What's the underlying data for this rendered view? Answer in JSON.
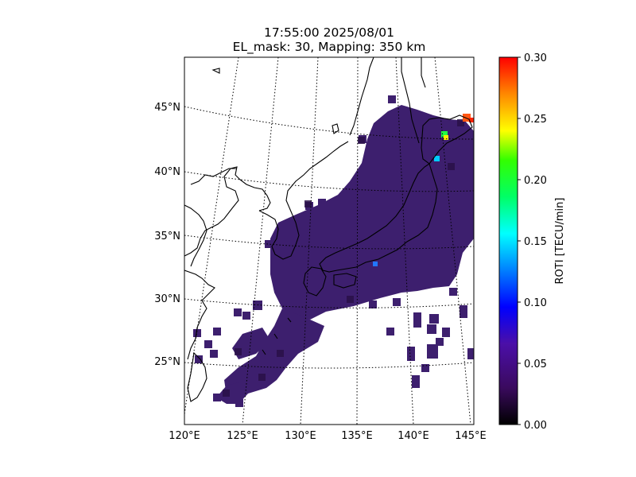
{
  "title": {
    "line1": "17:55:00 2025/08/01",
    "line2": "EL_mask: 30, Mapping: 350 km"
  },
  "map": {
    "lon_labels": [
      "120°E",
      "125°E",
      "130°E",
      "135°E",
      "140°E",
      "145°E"
    ],
    "lat_labels": [
      "45°N",
      "40°N",
      "35°N",
      "30°N",
      "25°N"
    ]
  },
  "colorbar": {
    "label": "ROTI [TECU/min]",
    "ticks": [
      "0.30",
      "0.25",
      "0.20",
      "0.15",
      "0.10",
      "0.05",
      "0.00"
    ],
    "min": 0.0,
    "max": 0.3,
    "colormap": [
      "#000000",
      "#4b0082",
      "#0000ff",
      "#00ffff",
      "#00ff00",
      "#ffff00",
      "#ff7f00",
      "#ff0000"
    ]
  },
  "roti_background_color": "#3d1f6e"
}
